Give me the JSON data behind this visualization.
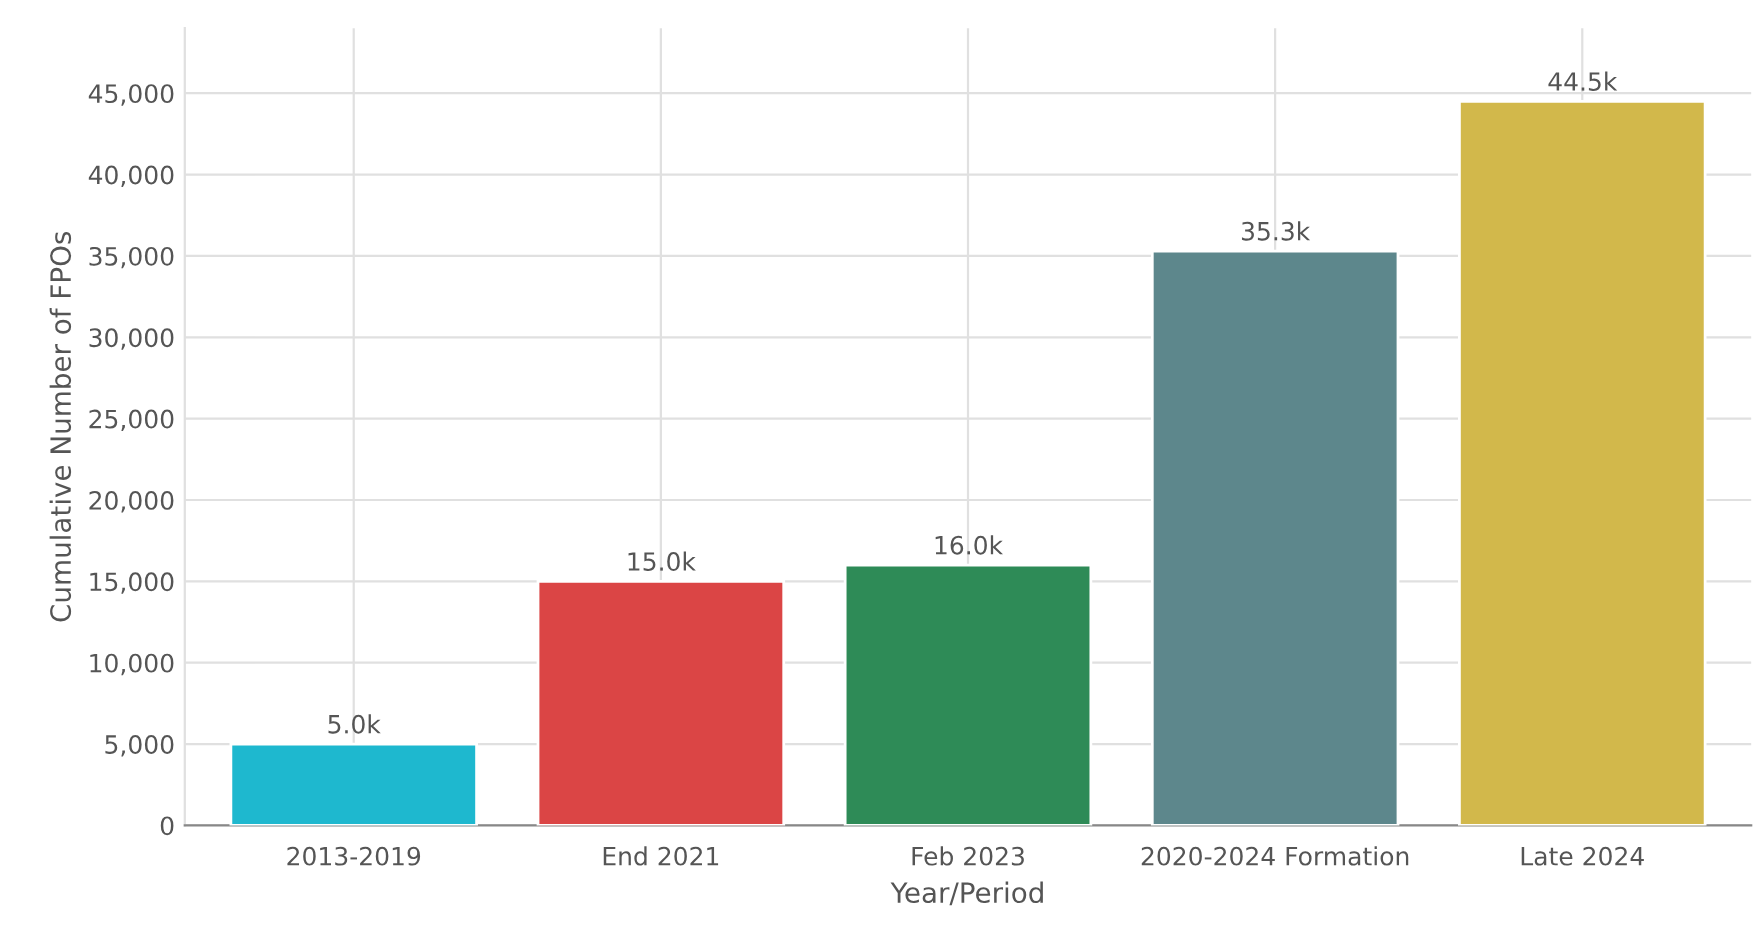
{
  "chart_data": {
    "type": "bar",
    "xlabel": "Year/Period",
    "ylabel": "Cumulative Number of FPOs",
    "categories": [
      "2013-2019",
      "End 2021",
      "Feb 2023",
      "2020-2024 Formation",
      "Late 2024"
    ],
    "values": [
      5000,
      15000,
      16000,
      35300,
      44500
    ],
    "colors": [
      "#1eb8cf",
      "#db4545",
      "#2e8b57",
      "#5d878c",
      "#d2b84b"
    ],
    "value_labels": [
      "5.0k",
      "15.0k",
      "16.0k",
      "35.3k",
      "44.5k"
    ],
    "ylim": [
      0,
      49000
    ],
    "yticks": [
      0,
      {
        "value": 5000,
        "label": "5,000"
      },
      {
        "value": 10000,
        "label": "10,000"
      },
      {
        "value": 15000,
        "label": "15,000"
      },
      {
        "value": 20000,
        "label": "20,000"
      },
      {
        "value": 25000,
        "label": "25,000"
      },
      {
        "value": 30000,
        "label": "30,000"
      },
      {
        "value": 35000,
        "label": "35,000"
      },
      {
        "value": 40000,
        "label": "40,000"
      },
      {
        "value": 45000,
        "label": "45,000"
      }
    ],
    "grid": true,
    "legend": false
  }
}
